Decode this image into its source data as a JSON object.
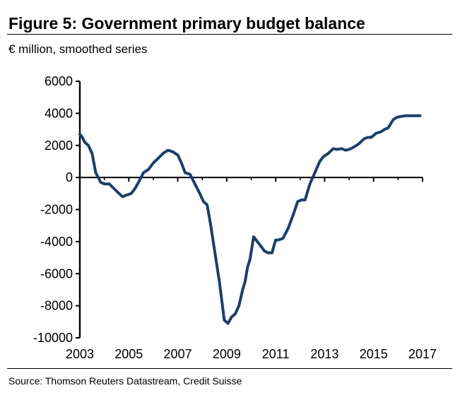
{
  "chart_data": {
    "type": "line",
    "title": "Figure 5: Government primary budget balance",
    "subtitle": "€ million, smoothed series",
    "source": "Source: Thomson Reuters Datastream, Credit Suisse",
    "xlabel": "",
    "ylabel": "",
    "xlim": [
      2003,
      2017
    ],
    "ylim": [
      -10000,
      6000
    ],
    "y_ticks": [
      6000,
      4000,
      2000,
      0,
      -2000,
      -4000,
      -6000,
      -8000,
      -10000
    ],
    "y_tick_labels": [
      "6000",
      "4000",
      "2000",
      "0",
      "-2000",
      "-4000",
      "-6000",
      "-8000",
      "-10000"
    ],
    "x_major_ticks": [
      2003,
      2005,
      2007,
      2009,
      2011,
      2013,
      2015,
      2017
    ],
    "x_tick_labels": [
      "2003",
      "2005",
      "2007",
      "2009",
      "2011",
      "2013",
      "2015",
      "2017"
    ],
    "x_minor_ticks": [
      2004,
      2006,
      2008,
      2010,
      2012,
      2014,
      2016
    ],
    "grid": false,
    "series": [
      {
        "name": "Government primary budget balance",
        "color": "#1a3f6b",
        "x": [
          2003.0,
          2003.1,
          2003.2,
          2003.35,
          2003.5,
          2003.65,
          2003.75,
          2003.85,
          2004.0,
          2004.2,
          2004.4,
          2004.6,
          2004.75,
          2004.9,
          2005.1,
          2005.25,
          2005.4,
          2005.6,
          2005.8,
          2006.0,
          2006.2,
          2006.4,
          2006.6,
          2006.8,
          2007.0,
          2007.15,
          2007.3,
          2007.5,
          2007.7,
          2007.9,
          2008.05,
          2008.2,
          2008.35,
          2008.5,
          2008.7,
          2008.9,
          2009.05,
          2009.2,
          2009.35,
          2009.5,
          2009.65,
          2009.75,
          2009.85,
          2009.95,
          2010.1,
          2010.25,
          2010.4,
          2010.55,
          2010.7,
          2010.85,
          2011.0,
          2011.1,
          2011.3,
          2011.5,
          2011.7,
          2011.9,
          2012.05,
          2012.2,
          2012.4,
          2012.6,
          2012.8,
          2012.95,
          2013.15,
          2013.35,
          2013.5,
          2013.7,
          2013.85,
          2014.0,
          2014.2,
          2014.4,
          2014.6,
          2014.75,
          2014.9,
          2015.1,
          2015.3,
          2015.45,
          2015.6,
          2015.8,
          2015.95,
          2016.1,
          2016.3,
          2016.45,
          2016.6,
          2016.75,
          2016.9
        ],
        "y": [
          2700,
          2500,
          2200,
          2000,
          1500,
          300,
          0,
          -300,
          -400,
          -400,
          -700,
          -1000,
          -1200,
          -1100,
          -1000,
          -700,
          -300,
          300,
          500,
          900,
          1200,
          1500,
          1700,
          1600,
          1400,
          900,
          300,
          200,
          -400,
          -1000,
          -1500,
          -1700,
          -3000,
          -4500,
          -6500,
          -8900,
          -9100,
          -8700,
          -8500,
          -8000,
          -7000,
          -6500,
          -5600,
          -5100,
          -3700,
          -4000,
          -4300,
          -4600,
          -4700,
          -4700,
          -3900,
          -3900,
          -3800,
          -3200,
          -2400,
          -1500,
          -1400,
          -1400,
          -400,
          300,
          1000,
          1300,
          1500,
          1800,
          1750,
          1800,
          1700,
          1750,
          1900,
          2100,
          2400,
          2500,
          2500,
          2750,
          2850,
          3000,
          3100,
          3600,
          3750,
          3800,
          3850,
          3850,
          3850,
          3850,
          3850
        ]
      }
    ]
  }
}
